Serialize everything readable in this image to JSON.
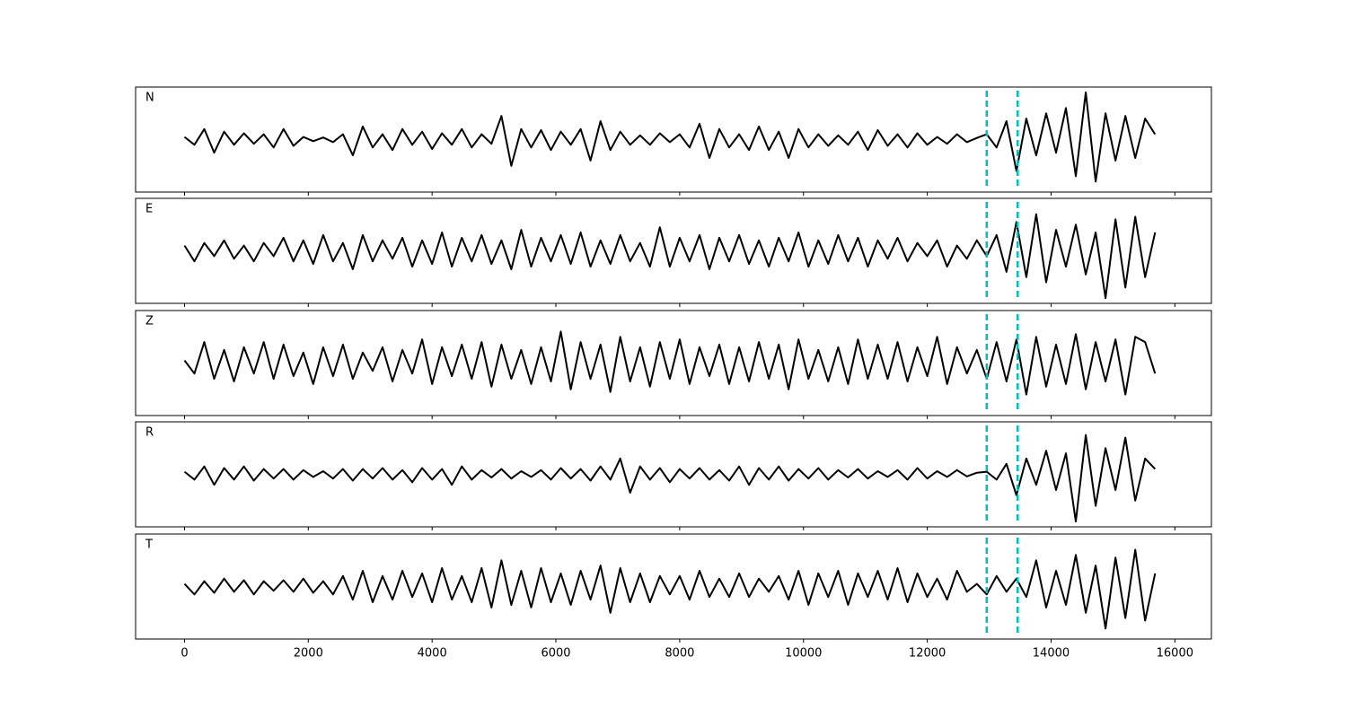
{
  "chart_data": {
    "type": "line",
    "layout": "stacked",
    "xlim": [
      -790,
      16590
    ],
    "xticks": [
      0,
      2000,
      4000,
      6000,
      8000,
      10000,
      12000,
      14000,
      16000
    ],
    "ylim": [
      -1,
      1
    ],
    "x": [
      0,
      160,
      320,
      480,
      640,
      800,
      960,
      1120,
      1280,
      1440,
      1600,
      1760,
      1920,
      2080,
      2240,
      2400,
      2560,
      2720,
      2880,
      3040,
      3200,
      3360,
      3520,
      3680,
      3840,
      4000,
      4160,
      4320,
      4480,
      4640,
      4800,
      4960,
      5120,
      5280,
      5440,
      5600,
      5760,
      5920,
      6080,
      6240,
      6400,
      6560,
      6720,
      6880,
      7040,
      7200,
      7360,
      7520,
      7680,
      7840,
      8000,
      8160,
      8320,
      8480,
      8640,
      8800,
      8960,
      9120,
      9280,
      9440,
      9600,
      9760,
      9920,
      10080,
      10240,
      10400,
      10560,
      10720,
      10880,
      11040,
      11200,
      11360,
      11520,
      11680,
      11840,
      12000,
      12160,
      12320,
      12480,
      12640,
      12800,
      12960,
      13120,
      13280,
      13440,
      13600,
      13760,
      13920,
      14080,
      14240,
      14400,
      14560,
      14720,
      14880,
      15040,
      15200,
      15360,
      15520,
      15680
    ],
    "series": [
      {
        "name": "N",
        "color": "#000000",
        "values": [
          0.05,
          -0.1,
          0.2,
          -0.25,
          0.15,
          -0.1,
          0.12,
          -0.08,
          0.1,
          -0.15,
          0.2,
          -0.12,
          0.05,
          -0.03,
          0.04,
          -0.05,
          0.1,
          -0.3,
          0.25,
          -0.15,
          0.1,
          -0.2,
          0.2,
          -0.1,
          0.15,
          -0.18,
          0.12,
          -0.1,
          0.2,
          -0.15,
          0.1,
          -0.08,
          0.45,
          -0.5,
          0.2,
          -0.15,
          0.18,
          -0.2,
          0.15,
          -0.1,
          0.2,
          -0.4,
          0.35,
          -0.2,
          0.15,
          -0.1,
          0.08,
          -0.1,
          0.12,
          -0.05,
          0.1,
          -0.15,
          0.3,
          -0.35,
          0.2,
          -0.15,
          0.1,
          -0.2,
          0.25,
          -0.2,
          0.15,
          -0.35,
          0.2,
          -0.15,
          0.1,
          -0.12,
          0.08,
          -0.1,
          0.15,
          -0.2,
          0.18,
          -0.12,
          0.1,
          -0.15,
          0.12,
          -0.1,
          0.05,
          -0.08,
          0.1,
          -0.05,
          0.03,
          0.1,
          -0.15,
          0.35,
          -0.6,
          0.4,
          -0.3,
          0.5,
          -0.25,
          0.6,
          -0.7,
          0.9,
          -0.8,
          0.5,
          -0.4,
          0.45,
          -0.35,
          0.4,
          0.1
        ]
      },
      {
        "name": "E",
        "color": "#000000",
        "values": [
          0.1,
          -0.2,
          0.15,
          -0.1,
          0.2,
          -0.15,
          0.1,
          -0.2,
          0.15,
          -0.1,
          0.25,
          -0.2,
          0.2,
          -0.25,
          0.3,
          -0.2,
          0.15,
          -0.35,
          0.3,
          -0.2,
          0.2,
          -0.15,
          0.25,
          -0.3,
          0.2,
          -0.25,
          0.35,
          -0.3,
          0.25,
          -0.2,
          0.3,
          -0.25,
          0.2,
          -0.35,
          0.4,
          -0.3,
          0.25,
          -0.2,
          0.3,
          -0.25,
          0.35,
          -0.3,
          0.2,
          -0.25,
          0.3,
          -0.2,
          0.15,
          -0.3,
          0.45,
          -0.3,
          0.25,
          -0.2,
          0.3,
          -0.35,
          0.25,
          -0.2,
          0.3,
          -0.25,
          0.2,
          -0.3,
          0.25,
          -0.2,
          0.35,
          -0.3,
          0.2,
          -0.25,
          0.3,
          -0.2,
          0.25,
          -0.3,
          0.2,
          -0.15,
          0.25,
          -0.2,
          0.15,
          -0.1,
          0.2,
          -0.3,
          0.1,
          -0.15,
          0.2,
          -0.1,
          0.3,
          -0.4,
          0.55,
          -0.5,
          0.7,
          -0.6,
          0.4,
          -0.3,
          0.5,
          -0.45,
          0.35,
          -0.9,
          0.6,
          -0.7,
          0.65,
          -0.5,
          0.35
        ]
      },
      {
        "name": "Z",
        "color": "#000000",
        "values": [
          0.05,
          -0.2,
          0.4,
          -0.3,
          0.25,
          -0.35,
          0.3,
          -0.2,
          0.4,
          -0.3,
          0.35,
          -0.25,
          0.2,
          -0.4,
          0.3,
          -0.25,
          0.35,
          -0.3,
          0.2,
          -0.15,
          0.3,
          -0.35,
          0.25,
          -0.2,
          0.45,
          -0.4,
          0.3,
          -0.25,
          0.35,
          -0.3,
          0.4,
          -0.45,
          0.35,
          -0.3,
          0.25,
          -0.4,
          0.3,
          -0.35,
          0.6,
          -0.5,
          0.4,
          -0.3,
          0.35,
          -0.55,
          0.5,
          -0.35,
          0.3,
          -0.45,
          0.4,
          -0.3,
          0.45,
          -0.4,
          0.3,
          -0.25,
          0.35,
          -0.4,
          0.3,
          -0.35,
          0.4,
          -0.3,
          0.35,
          -0.5,
          0.45,
          -0.3,
          0.25,
          -0.35,
          0.3,
          -0.4,
          0.45,
          -0.3,
          0.35,
          -0.3,
          0.4,
          -0.35,
          0.3,
          -0.25,
          0.5,
          -0.4,
          0.3,
          -0.2,
          0.25,
          -0.3,
          0.4,
          -0.35,
          0.45,
          -0.6,
          0.5,
          -0.45,
          0.35,
          -0.4,
          0.55,
          -0.5,
          0.4,
          -0.35,
          0.45,
          -0.6,
          0.5,
          0.4,
          -0.2
        ]
      },
      {
        "name": "R",
        "color": "#000000",
        "values": [
          0.05,
          -0.1,
          0.15,
          -0.2,
          0.12,
          -0.1,
          0.15,
          -0.12,
          0.1,
          -0.08,
          0.1,
          -0.1,
          0.08,
          -0.05,
          0.06,
          -0.08,
          0.1,
          -0.12,
          0.1,
          -0.08,
          0.12,
          -0.1,
          0.08,
          -0.15,
          0.12,
          -0.1,
          0.1,
          -0.2,
          0.15,
          -0.1,
          0.08,
          -0.06,
          0.1,
          -0.08,
          0.06,
          -0.05,
          0.08,
          -0.1,
          0.12,
          -0.08,
          0.1,
          -0.12,
          0.15,
          -0.1,
          0.3,
          -0.35,
          0.15,
          -0.1,
          0.12,
          -0.15,
          0.1,
          -0.08,
          0.12,
          -0.1,
          0.08,
          -0.12,
          0.15,
          -0.2,
          0.12,
          -0.1,
          0.15,
          -0.12,
          0.1,
          -0.08,
          0.12,
          -0.1,
          0.08,
          -0.06,
          0.1,
          -0.08,
          0.06,
          -0.05,
          0.08,
          -0.1,
          0.12,
          -0.08,
          0.06,
          -0.05,
          0.08,
          -0.04,
          0.03,
          0.05,
          -0.1,
          0.2,
          -0.4,
          0.3,
          -0.2,
          0.45,
          -0.3,
          0.4,
          -0.9,
          0.75,
          -0.6,
          0.5,
          -0.3,
          0.7,
          -0.5,
          0.3,
          0.1
        ]
      },
      {
        "name": "T",
        "color": "#000000",
        "values": [
          0.05,
          -0.15,
          0.1,
          -0.12,
          0.15,
          -0.1,
          0.12,
          -0.15,
          0.1,
          -0.08,
          0.12,
          -0.1,
          0.15,
          -0.12,
          0.1,
          -0.15,
          0.2,
          -0.25,
          0.3,
          -0.3,
          0.2,
          -0.25,
          0.3,
          -0.2,
          0.25,
          -0.3,
          0.35,
          -0.25,
          0.2,
          -0.3,
          0.35,
          -0.4,
          0.5,
          -0.35,
          0.3,
          -0.4,
          0.35,
          -0.3,
          0.25,
          -0.35,
          0.3,
          -0.25,
          0.4,
          -0.5,
          0.35,
          -0.3,
          0.25,
          -0.3,
          0.2,
          -0.15,
          0.2,
          -0.25,
          0.3,
          -0.2,
          0.15,
          -0.2,
          0.25,
          -0.2,
          0.15,
          -0.1,
          0.2,
          -0.25,
          0.3,
          -0.35,
          0.25,
          -0.2,
          0.3,
          -0.35,
          0.25,
          -0.2,
          0.3,
          -0.25,
          0.35,
          -0.3,
          0.25,
          -0.2,
          0.15,
          -0.25,
          0.3,
          -0.1,
          0.05,
          -0.15,
          0.2,
          -0.1,
          0.15,
          -0.2,
          0.5,
          -0.4,
          0.3,
          -0.35,
          0.6,
          -0.5,
          0.4,
          -0.8,
          0.55,
          -0.6,
          0.7,
          -0.65,
          0.25
        ]
      }
    ],
    "picks": {
      "values": [
        12960,
        13460
      ],
      "color": "#00bfbf"
    }
  }
}
